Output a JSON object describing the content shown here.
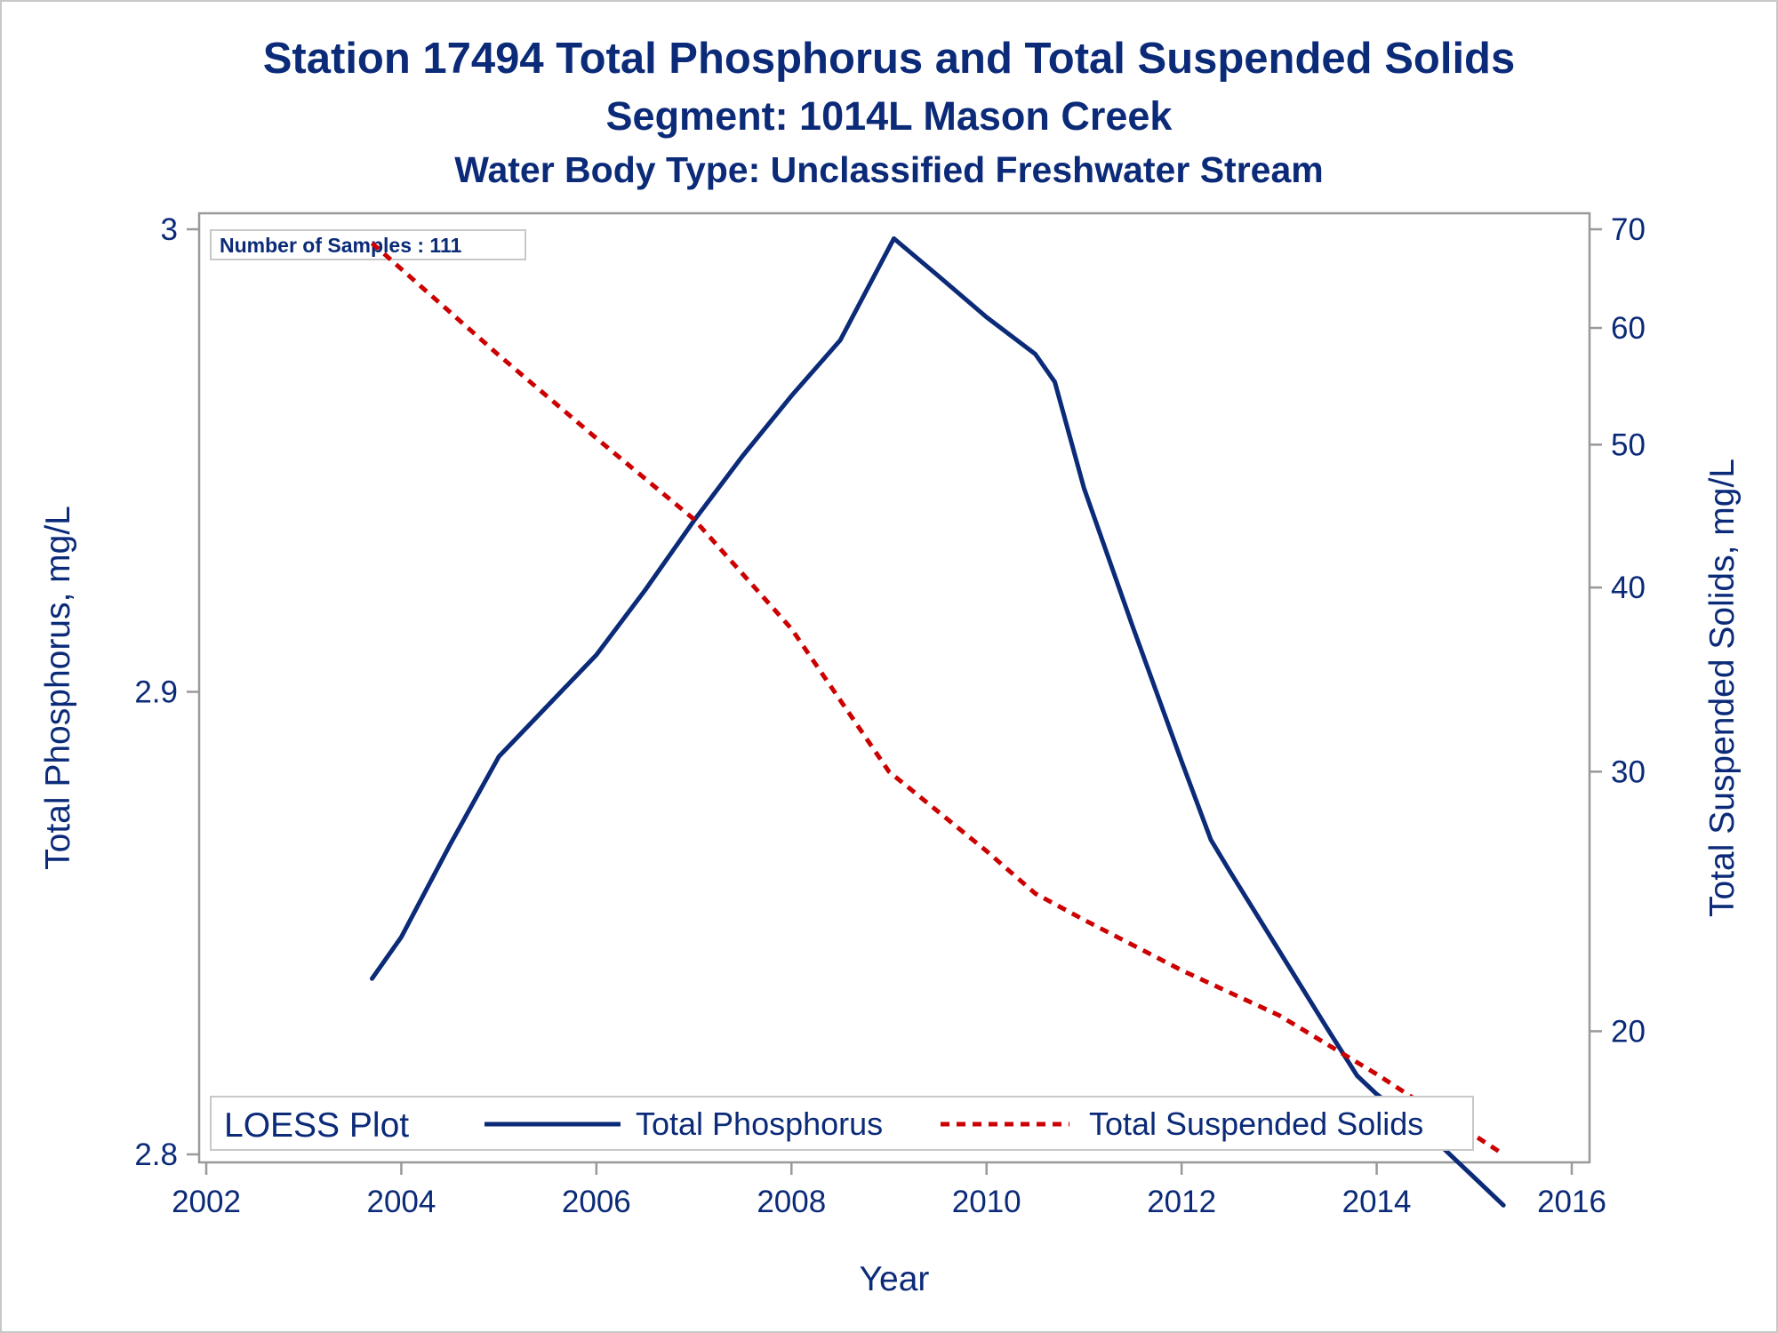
{
  "chart_data": {
    "type": "line",
    "title": "Station 17494  Total Phosphorus and Total Suspended Solids",
    "subtitle": "Segment: 1014L  Mason Creek",
    "subtitle2": "Water Body Type: Unclassified Freshwater Stream",
    "xlabel": "Year",
    "ylabel": "Total Phosphorus, mg/L",
    "y2label": "Total Suspended Solids, mg/L",
    "xlim": [
      2002,
      2016
    ],
    "ylim": [
      2.8,
      3.0
    ],
    "y2lim": [
      16.5,
      70
    ],
    "y2scale": "log",
    "x_ticks": [
      "2002",
      "2004",
      "2006",
      "2008",
      "2010",
      "2012",
      "2014",
      "2016"
    ],
    "y_ticks": [
      "2.8",
      "2.9",
      "3"
    ],
    "y2_ticks": [
      "20",
      "30",
      "40",
      "50",
      "60",
      "70"
    ],
    "grid": false,
    "inset": "Number of Samples : 111",
    "legend": {
      "title": "LOESS Plot",
      "placement": "bottom",
      "entries": [
        "Total Phosphorus",
        "Total Suspended Solids"
      ]
    },
    "series": [
      {
        "name": "Total Phosphorus",
        "axis": "left",
        "style": "solid",
        "color": "#0b2a78",
        "x": [
          2003.7,
          2004.0,
          2004.5,
          2005.0,
          2005.5,
          2006.0,
          2006.5,
          2007.0,
          2007.5,
          2008.0,
          2008.5,
          2009.05,
          2009.5,
          2010.0,
          2010.5,
          2010.7,
          2011.0,
          2011.5,
          2012.0,
          2012.3,
          2012.5,
          2013.0,
          2013.5,
          2013.8,
          2014.0,
          2014.5,
          2015.0,
          2015.3
        ],
        "y": [
          2.838,
          2.847,
          2.867,
          2.886,
          2.897,
          2.908,
          2.922,
          2.937,
          2.951,
          2.964,
          2.976,
          2.998,
          2.99,
          2.981,
          2.973,
          2.967,
          2.944,
          2.914,
          2.885,
          2.868,
          2.861,
          2.844,
          2.827,
          2.817,
          2.813,
          2.805,
          2.795,
          2.789
        ]
      },
      {
        "name": "Total Suspended Solids",
        "axis": "right",
        "style": "dashed",
        "color": "#cc0000",
        "x": [
          2003.7,
          2004.5,
          2005.0,
          2006.0,
          2007.0,
          2008.0,
          2009.0,
          2010.0,
          2010.5,
          2011.0,
          2012.0,
          2013.0,
          2014.0,
          2014.5,
          2015.0,
          2015.3
        ],
        "y": [
          68.5,
          61.5,
          57.5,
          50.5,
          44.5,
          37.5,
          30.0,
          26.5,
          24.8,
          23.8,
          22.0,
          20.5,
          18.7,
          17.8,
          17.0,
          16.5
        ]
      }
    ]
  }
}
